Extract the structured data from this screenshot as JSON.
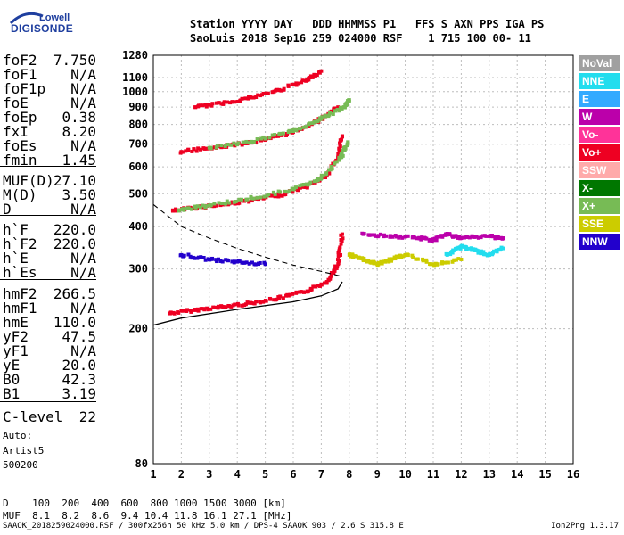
{
  "logo": {
    "company": "Lowell",
    "product": "DIGISONDE"
  },
  "header": {
    "line1": "Station YYYY DAY   DDD HHMMSS P1   FFS S AXN PPS IGA PS",
    "line2": "SaoLuis 2018 Sep16 259 024000 RSF    1 715 100 00- 11"
  },
  "params": [
    {
      "name": "foF2",
      "value": "7.750"
    },
    {
      "name": "foF1",
      "value": "N/A"
    },
    {
      "name": "foF1p",
      "value": "N/A"
    },
    {
      "name": "foE",
      "value": "N/A"
    },
    {
      "name": "foEp",
      "value": "0.38"
    },
    {
      "name": "fxI",
      "value": "8.20"
    },
    {
      "name": "foEs",
      "value": "N/A"
    },
    {
      "name": "fmin",
      "value": "1.45"
    },
    {
      "name": "MUF(D)",
      "value": "27.10"
    },
    {
      "name": "M(D)",
      "value": "3.50"
    },
    {
      "name": "D",
      "value": "N/A"
    },
    {
      "name": "h`F",
      "value": "220.0"
    },
    {
      "name": "h`F2",
      "value": "220.0"
    },
    {
      "name": "h`E",
      "value": "N/A"
    },
    {
      "name": "h`Es",
      "value": "N/A"
    },
    {
      "name": "hmF2",
      "value": "266.5"
    },
    {
      "name": "hmF1",
      "value": "N/A"
    },
    {
      "name": "hmE",
      "value": "110.0"
    },
    {
      "name": "yF2",
      "value": "47.5"
    },
    {
      "name": "yF1",
      "value": "N/A"
    },
    {
      "name": "yE",
      "value": "20.0"
    },
    {
      "name": "B0",
      "value": "42.3"
    },
    {
      "name": "B1",
      "value": "3.19"
    },
    {
      "name": "C-level",
      "value": "22"
    }
  ],
  "tail": {
    "line1": "Auto:",
    "line2": "Artist5",
    "line3": "500200"
  },
  "legend": [
    {
      "label": "NoVal",
      "color": "#a0a0a0"
    },
    {
      "label": "NNE",
      "color": "#22ddee"
    },
    {
      "label": "E",
      "color": "#33aaff"
    },
    {
      "label": "W",
      "color": "#bb00aa"
    },
    {
      "label": "Vo-",
      "color": "#ff3399"
    },
    {
      "label": "Vo+",
      "color": "#ee0022"
    },
    {
      "label": "SSW",
      "color": "#ffaaaa"
    },
    {
      "label": "X-",
      "color": "#007700"
    },
    {
      "label": "X+",
      "color": "#77bb55"
    },
    {
      "label": "SSE",
      "color": "#cccc00"
    },
    {
      "label": "NNW",
      "color": "#2200cc"
    }
  ],
  "bottom": {
    "d_line": "D    100  200  400  600  800 1000 1500 3000 [km]",
    "muf_line": "MUF  8.1  8.2  8.6  9.4 10.4 11.8 16.1 27.1 [MHz]"
  },
  "footer": {
    "left": "SAAOK_2018259024000.RSF / 300fx256h 50 kHz 5.0 km / DPS-4 SAAOK 903 / 2.6 S 315.8 E",
    "right": "Ion2Png 1.3.17"
  },
  "chart_data": {
    "type": "scatter",
    "xlim": [
      1,
      16
    ],
    "ylim": [
      80,
      1280
    ],
    "x_ticks": [
      1,
      2,
      3,
      4,
      5,
      6,
      7,
      8,
      9,
      10,
      11,
      12,
      13,
      14,
      15,
      16
    ],
    "y_ticks": [
      80,
      200,
      300,
      400,
      500,
      600,
      700,
      800,
      900,
      1000,
      1100,
      1280
    ],
    "grid": true,
    "y_scale": "log",
    "series": [
      {
        "name": "Vo+",
        "color": "#ee0022",
        "points": [
          [
            1.6,
            222
          ],
          [
            2.5,
            227
          ],
          [
            3.5,
            232
          ],
          [
            4.5,
            238
          ],
          [
            5.5,
            246
          ],
          [
            6.5,
            258
          ],
          [
            7.2,
            275
          ],
          [
            7.6,
            310
          ],
          [
            7.75,
            380
          ]
        ]
      },
      {
        "name": "Vo+",
        "color": "#ee0022",
        "points": [
          [
            1.7,
            445
          ],
          [
            2.5,
            455
          ],
          [
            3.5,
            465
          ],
          [
            4.5,
            478
          ],
          [
            5.5,
            495
          ],
          [
            6.5,
            525
          ],
          [
            7.2,
            565
          ],
          [
            7.6,
            640
          ],
          [
            7.75,
            740
          ]
        ]
      },
      {
        "name": "Vo+",
        "color": "#ee0022",
        "points": [
          [
            2.0,
            665
          ],
          [
            3.0,
            680
          ],
          [
            4.0,
            700
          ],
          [
            5.0,
            720
          ],
          [
            6.0,
            760
          ],
          [
            7.0,
            830
          ],
          [
            7.6,
            900
          ]
        ]
      },
      {
        "name": "Vo+",
        "color": "#ee0022",
        "points": [
          [
            2.5,
            900
          ],
          [
            3.5,
            925
          ],
          [
            4.5,
            960
          ],
          [
            5.5,
            1010
          ],
          [
            6.5,
            1080
          ],
          [
            7.0,
            1150
          ]
        ]
      },
      {
        "name": "X+",
        "color": "#77bb55",
        "points": [
          [
            1.9,
            447
          ],
          [
            3.0,
            462
          ],
          [
            4.5,
            485
          ],
          [
            6.0,
            515
          ],
          [
            7.0,
            555
          ],
          [
            7.7,
            640
          ],
          [
            7.95,
            710
          ]
        ]
      },
      {
        "name": "X+",
        "color": "#77bb55",
        "points": [
          [
            3.0,
            683
          ],
          [
            4.5,
            712
          ],
          [
            6.0,
            765
          ],
          [
            7.0,
            830
          ],
          [
            7.8,
            900
          ],
          [
            8.0,
            945
          ]
        ]
      },
      {
        "name": "W",
        "color": "#bb00aa",
        "points": [
          [
            8.5,
            380
          ],
          [
            9.5,
            375
          ],
          [
            10.5,
            370
          ],
          [
            11.0,
            365
          ],
          [
            11.5,
            380
          ],
          [
            12.0,
            370
          ],
          [
            13.0,
            375
          ],
          [
            13.5,
            370
          ]
        ]
      },
      {
        "name": "NNE",
        "color": "#22ddee",
        "points": [
          [
            11.5,
            330
          ],
          [
            12.0,
            350
          ],
          [
            12.5,
            340
          ],
          [
            13.0,
            330
          ],
          [
            13.5,
            345
          ]
        ]
      },
      {
        "name": "SSE",
        "color": "#cccc00",
        "points": [
          [
            8.0,
            330
          ],
          [
            8.5,
            320
          ],
          [
            9.0,
            310
          ],
          [
            9.5,
            320
          ],
          [
            10.0,
            330
          ],
          [
            11.0,
            310
          ],
          [
            12.0,
            320
          ]
        ]
      },
      {
        "name": "NNW",
        "color": "#2200cc",
        "points": [
          [
            2.0,
            330
          ],
          [
            3.0,
            320
          ],
          [
            4.0,
            315
          ],
          [
            5.0,
            310
          ]
        ]
      }
    ],
    "profile_line": [
      [
        1.0,
        205
      ],
      [
        2.0,
        215
      ],
      [
        4.0,
        228
      ],
      [
        6.0,
        240
      ],
      [
        7.0,
        250
      ],
      [
        7.6,
        262
      ],
      [
        7.75,
        275
      ]
    ],
    "profile_dashed": [
      [
        1.0,
        465
      ],
      [
        2.0,
        400
      ],
      [
        3.0,
        370
      ],
      [
        4.0,
        345
      ],
      [
        5.0,
        325
      ],
      [
        6.0,
        308
      ],
      [
        7.0,
        295
      ],
      [
        7.75,
        285
      ]
    ]
  }
}
